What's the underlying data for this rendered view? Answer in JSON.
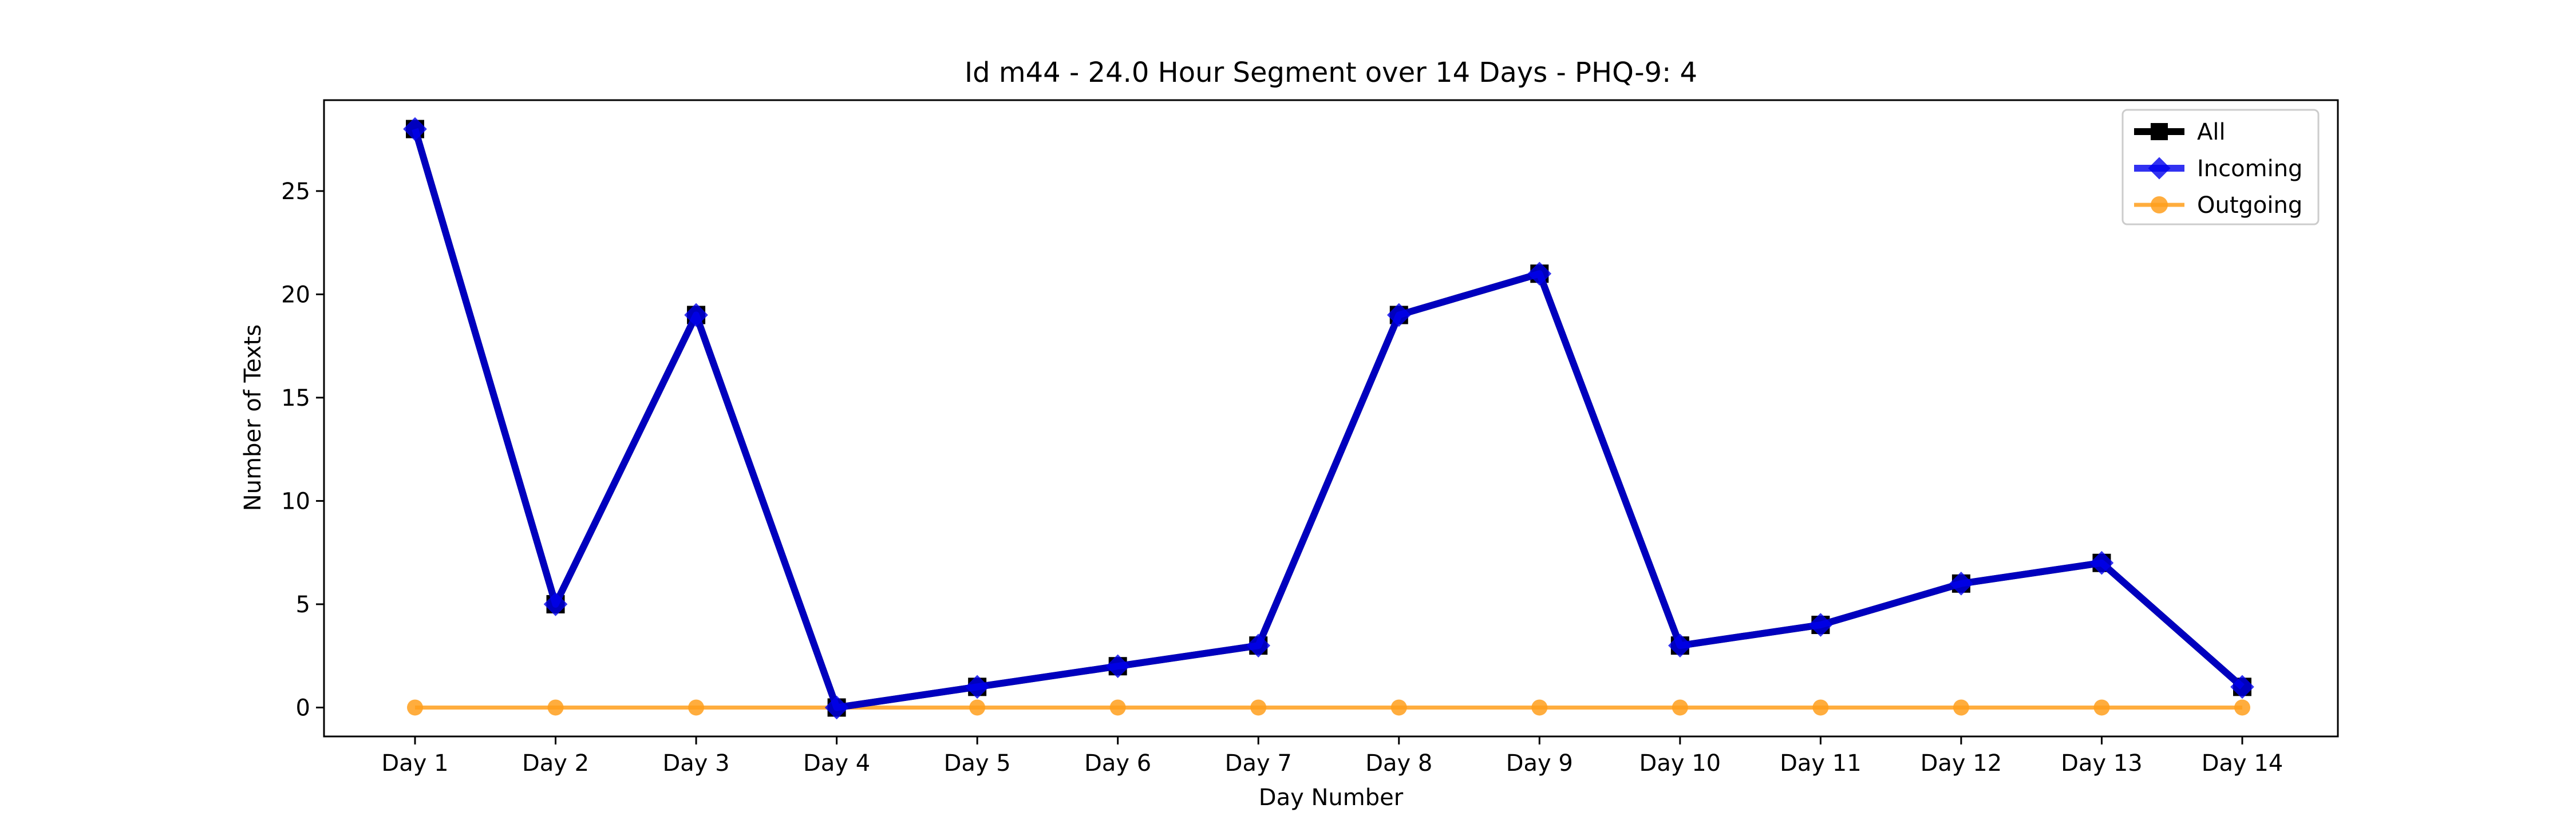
{
  "chart_data": {
    "type": "line",
    "title": "Id m44 - 24.0 Hour Segment over 14 Days - PHQ-9: 4",
    "xlabel": "Day Number",
    "ylabel": "Number of Texts",
    "categories": [
      "Day 1",
      "Day 2",
      "Day 3",
      "Day 4",
      "Day 5",
      "Day 6",
      "Day 7",
      "Day 8",
      "Day 9",
      "Day 10",
      "Day 11",
      "Day 12",
      "Day 13",
      "Day 14"
    ],
    "ylim": [
      -1.4,
      29.4
    ],
    "yticks": [
      0,
      5,
      10,
      15,
      20,
      25
    ],
    "grid": false,
    "legend_position": "top-right",
    "series": [
      {
        "name": "All",
        "color": "#000000",
        "marker": "square",
        "values": [
          28,
          5,
          19,
          0,
          1,
          2,
          3,
          19,
          21,
          3,
          4,
          6,
          7,
          1
        ]
      },
      {
        "name": "Incoming",
        "color": "#0000ee",
        "marker": "diamond",
        "values": [
          28,
          5,
          19,
          0,
          1,
          2,
          3,
          19,
          21,
          3,
          4,
          6,
          7,
          1
        ]
      },
      {
        "name": "Outgoing",
        "color": "#ff9f1c",
        "marker": "circle",
        "values": [
          0,
          0,
          0,
          0,
          0,
          0,
          0,
          0,
          0,
          0,
          0,
          0,
          0,
          0
        ]
      }
    ]
  }
}
